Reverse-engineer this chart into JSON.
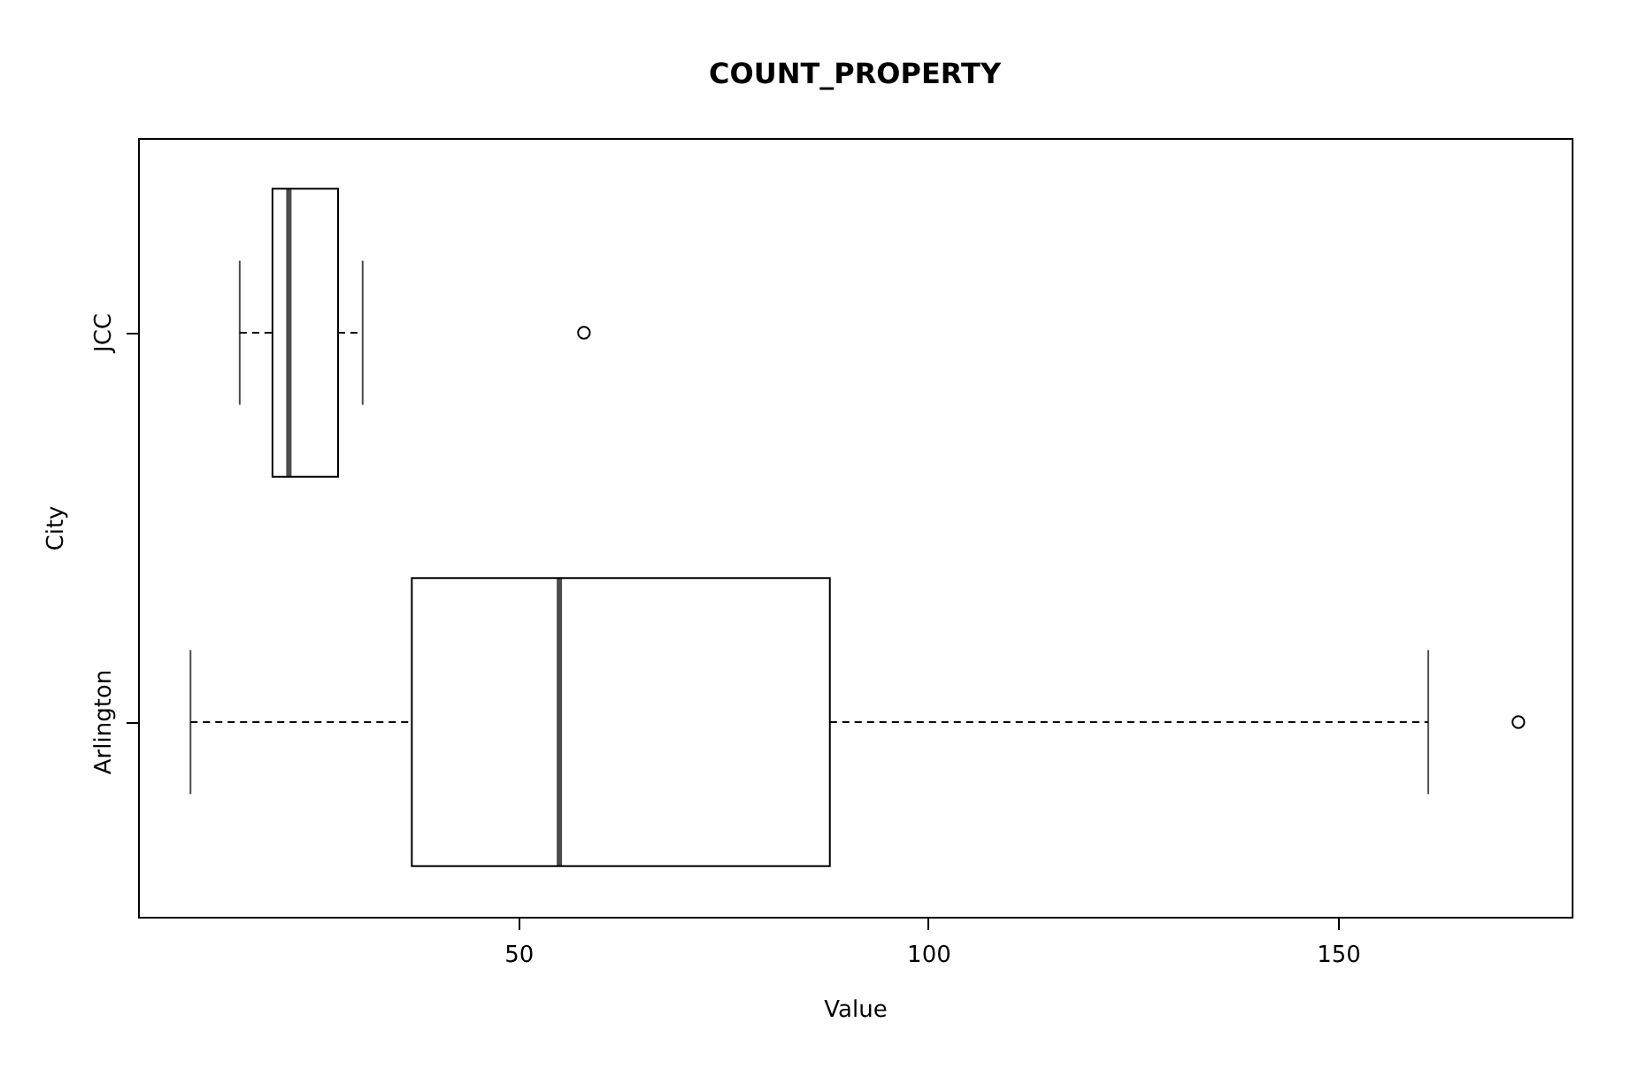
{
  "chart_data": {
    "type": "box",
    "title": "COUNT_PROPERTY",
    "xlabel": "Value",
    "ylabel": "City",
    "orientation": "horizontal",
    "categories": [
      "JCC",
      "Arlington"
    ],
    "boxes": [
      {
        "low": 16,
        "q1": 20,
        "median": 22,
        "q3": 28,
        "high": 31,
        "outliers": [
          58
        ]
      },
      {
        "low": 10,
        "q1": 37,
        "median": 55,
        "q3": 88,
        "high": 161,
        "outliers": [
          172
        ]
      }
    ],
    "xlim": [
      3.6,
      178.5
    ],
    "xticks": [
      50,
      100,
      150
    ],
    "line_style": "dashed"
  }
}
